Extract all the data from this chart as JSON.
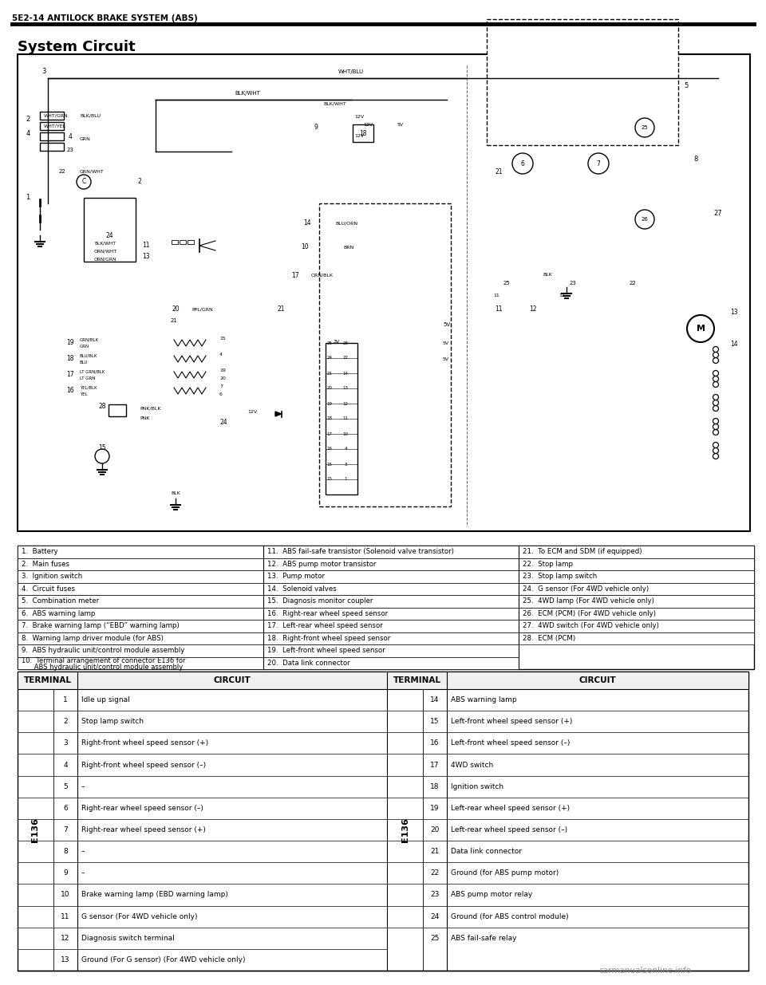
{
  "header_text": "5E2-14 ANTILOCK BRAKE SYSTEM (ABS)",
  "title_text": "System Circuit",
  "bg_color": "#ffffff",
  "legend_items_col1": [
    "1.  Battery",
    "2.  Main fuses",
    "3.  Ignition switch",
    "4.  Circuit fuses",
    "5.  Combination meter",
    "6.  ABS warning lamp",
    "7.  Brake warning lamp (“EBD” warning lamp)",
    "8.  Warning lamp driver module (for ABS)",
    "9.  ABS hydraulic unit/control module assembly",
    "10.  Terminal arrangement of connector E136 for"
  ],
  "legend_items_col1b": [
    "",
    "",
    "",
    "",
    "",
    "",
    "",
    "",
    "",
    "      ABS hydraulic unit/control module assembly"
  ],
  "legend_items_col2": [
    "11.  ABS fail-safe transistor (Solenoid valve transistor)",
    "12.  ABS pump motor transistor",
    "13.  Pump motor",
    "14.  Solenoid valves",
    "15.  Diagnosis monitor coupler",
    "16.  Right-rear wheel speed sensor",
    "17.  Left-rear wheel speed sensor",
    "18.  Right-front wheel speed sensor",
    "19.  Left-front wheel speed sensor",
    "20.  Data link connector"
  ],
  "legend_items_col3": [
    "21.  To ECM and SDM (if equipped)",
    "22.  Stop lamp",
    "23.  Stop lamp switch",
    "24.  G sensor (For 4WD vehicle only)",
    "25.  4WD lamp (For 4WD vehicle only)",
    "26.  ECM (PCM) (For 4WD vehicle only)",
    "27.  4WD switch (For 4WD vehicle only)",
    "28.  ECM (PCM)"
  ],
  "terminal_header": [
    "TERMINAL",
    "CIRCUIT",
    "TERMINAL",
    "CIRCUIT"
  ],
  "terminal_label": "E136",
  "terminal_rows_left": [
    [
      "1",
      "Idle up signal"
    ],
    [
      "2",
      "Stop lamp switch"
    ],
    [
      "3",
      "Right-front wheel speed sensor (+)"
    ],
    [
      "4",
      "Right-front wheel speed sensor (–)"
    ],
    [
      "5",
      "–"
    ],
    [
      "6",
      "Right-rear wheel speed sensor (–)"
    ],
    [
      "7",
      "Right-rear wheel speed sensor (+)"
    ],
    [
      "8",
      "–"
    ],
    [
      "9",
      "–"
    ],
    [
      "10",
      "Brake warning lamp (EBD warning lamp)"
    ],
    [
      "11",
      "G sensor (For 4WD vehicle only)"
    ],
    [
      "12",
      "Diagnosis switch terminal"
    ],
    [
      "13",
      "Ground (For G sensor) (For 4WD vehicle only)"
    ]
  ],
  "terminal_rows_right": [
    [
      "14",
      "ABS warning lamp"
    ],
    [
      "15",
      "Left-front wheel speed sensor (+)"
    ],
    [
      "16",
      "Left-front wheel speed sensor (–)"
    ],
    [
      "17",
      "4WD switch"
    ],
    [
      "18",
      "Ignition switch"
    ],
    [
      "19",
      "Left-rear wheel speed sensor (+)"
    ],
    [
      "20",
      "Left-rear wheel speed sensor (–)"
    ],
    [
      "21",
      "Data link connector"
    ],
    [
      "22",
      "Ground (for ABS pump motor)"
    ],
    [
      "23",
      "ABS pump motor relay"
    ],
    [
      "24",
      "Ground (for ABS control module)"
    ],
    [
      "25",
      "ABS fail-safe relay"
    ]
  ],
  "watermark": "carmanualsonline.info"
}
